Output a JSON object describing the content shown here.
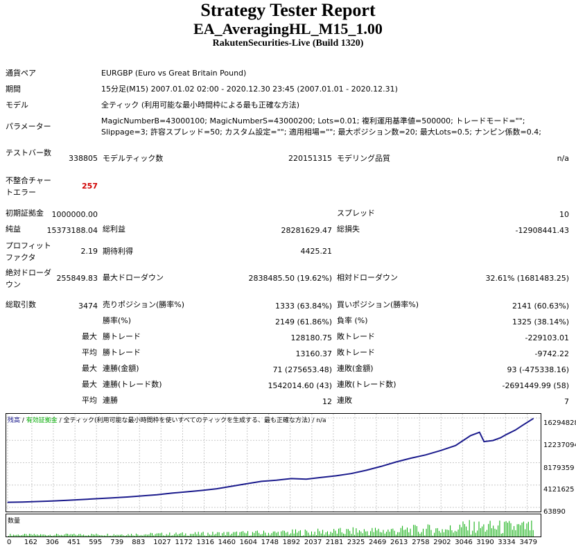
{
  "header": {
    "title": "Strategy Tester Report",
    "ea_name": "EA_AveragingHL_M15_1.00",
    "server": "RakutenSecurities-Live (Build 1320)"
  },
  "settings": {
    "symbol_label": "通貨ペア",
    "symbol_value": "EURGBP (Euro vs Great Britain Pound)",
    "period_label": "期間",
    "period_value": "15分足(M15) 2007.01.02 02:00 - 2020.12.30 23:45 (2007.01.01 - 2020.12.31)",
    "model_label": "モデル",
    "model_value": "全ティック (利用可能な最小時間枠による最も正確な方法)",
    "params_label": "パラメーター",
    "params_value": "MagicNumberB=43000100; MagicNumberS=43000200; Lots=0.01; 複利運用基準値=500000; トレードモード=\"\"; Slippage=3; 許容スプレッド=50; カスタム設定=\"\"; 適用相場=\"\"; 最大ポジション数=20; 最大Lots=0.5; ナンピン係数=0.4;"
  },
  "stats": {
    "bars_label": "テストバー数",
    "bars_value": "338805",
    "ticks_label": "モデルティック数",
    "ticks_value": "220151315",
    "quality_label": "モデリング品質",
    "quality_value": "n/a",
    "mismatch_label": "不整合チャートエラー",
    "mismatch_value": "257",
    "deposit_label": "初期証拠金",
    "deposit_value": "1000000.00",
    "spread_label": "スプレッド",
    "spread_value": "10",
    "net_label": "純益",
    "net_value": "15373188.04",
    "gross_profit_label": "総利益",
    "gross_profit_value": "28281629.47",
    "gross_loss_label": "総損失",
    "gross_loss_value": "-12908441.43",
    "pf_label": "プロフィットファクタ",
    "pf_value": "2.19",
    "expected_label": "期待利得",
    "expected_value": "4425.21",
    "abs_dd_label": "絶対ドローダウン",
    "abs_dd_value": "255849.83",
    "max_dd_label": "最大ドローダウン",
    "max_dd_value": "2838485.50 (19.62%)",
    "rel_dd_label": "相対ドローダウン",
    "rel_dd_value": "32.61% (1681483.25)",
    "total_label": "総取引数",
    "total_value": "3474",
    "short_label": "売りポジション(勝率%)",
    "short_value": "1333 (63.84%)",
    "long_label": "買いポジション(勝率%)",
    "long_value": "2141 (60.63%)",
    "winrate_label": "勝率(%)",
    "winrate_value": "2149 (61.86%)",
    "lossrate_label": "負率 (%)",
    "lossrate_value": "1325 (38.14%)",
    "max_word": "最大",
    "avg_word": "平均",
    "win_trade_label": "勝トレード",
    "loss_trade_label": "敗トレード",
    "max_win_value": "128180.75",
    "max_loss_value": "-229103.01",
    "avg_win_value": "13160.37",
    "avg_loss_value": "-9742.22",
    "consec_win_money_label": "連勝(金額)",
    "consec_win_money_value": "71 (275653.48)",
    "consec_loss_money_label": "連敗(金額)",
    "consec_loss_money_value": "93 (-475338.16)",
    "consec_win_trades_label": "連勝(トレード数)",
    "consec_win_trades_value": "1542014.60 (43)",
    "consec_loss_trades_label": "連敗(トレード数)",
    "consec_loss_trades_value": "-2691449.99 (58)",
    "avg_consec_win_label": "連勝",
    "avg_consec_win_value": "12",
    "avg_consec_loss_label": "連敗",
    "avg_consec_loss_value": "7"
  },
  "chart": {
    "caption_balance": "残高",
    "caption_sep": " / ",
    "caption_equity": "有効証拠金",
    "caption_rest": " / 全ティック(利用可能な最小時間枠を使いすべてのティックを生成する、最も正確な方法) / n/a",
    "volume_label": "数量",
    "colors": {
      "balance": "#1a1a8c",
      "equity": "#00aa00",
      "volume": "#00aa00",
      "grid": "#c8c8c8"
    }
  },
  "chart_data": {
    "type": "line",
    "y_ticks": [
      "16294828",
      "12237094",
      "8179359",
      "4121625",
      "63890"
    ],
    "x_ticks": [
      "0",
      "162",
      "306",
      "451",
      "595",
      "739",
      "883",
      "1027",
      "1172",
      "1316",
      "1460",
      "1604",
      "1748",
      "1892",
      "2037",
      "2181",
      "2325",
      "2469",
      "2613",
      "2758",
      "2902",
      "3046",
      "3190",
      "3334",
      "3479"
    ],
    "ylim": [
      63890,
      16294828
    ],
    "xlim": [
      0,
      3560
    ],
    "series": [
      {
        "name": "残高",
        "x": [
          0,
          100,
          200,
          300,
          400,
          500,
          600,
          700,
          800,
          900,
          1000,
          1100,
          1200,
          1300,
          1400,
          1500,
          1600,
          1700,
          1800,
          1900,
          2000,
          2100,
          2200,
          2300,
          2400,
          2500,
          2600,
          2700,
          2800,
          2900,
          3000,
          3100,
          3160,
          3190,
          3250,
          3300,
          3340,
          3400,
          3450,
          3520
        ],
        "y": [
          1000000,
          1050000,
          1130000,
          1230000,
          1350000,
          1500000,
          1650000,
          1800000,
          1950000,
          2150000,
          2350000,
          2650000,
          2900000,
          3150000,
          3450000,
          3900000,
          4350000,
          4800000,
          5000000,
          5300000,
          5200000,
          5500000,
          5800000,
          6200000,
          6800000,
          7500000,
          8300000,
          9000000,
          9600000,
          10400000,
          11300000,
          13100000,
          13700000,
          12000000,
          12200000,
          12700000,
          13300000,
          14100000,
          15000000,
          16200000
        ]
      }
    ]
  }
}
